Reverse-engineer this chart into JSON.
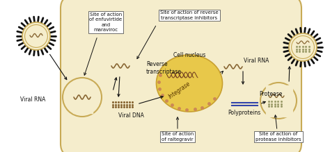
{
  "bg_color": "#ffffff",
  "cell_color": "#f5edcc",
  "cell_edge_color": "#c8aa55",
  "nucleus_color": "#e8c84a",
  "nucleus_edge": "#c8a030",
  "virus_fill": "#f5edcc",
  "virus_edge": "#c8aa55",
  "spike_color": "#111111",
  "text_color": "#111111",
  "arrow_color": "#111111",
  "box_color": "#ffffff",
  "box_edge": "#555555",
  "wavy_color": "#886633",
  "dna_color": "#886633",
  "poly_line_color": "#3344aa",
  "labels": {
    "site_enfuvirtide": "Site of action\nof enfuvirtide\nand\nmaraviroc",
    "site_rt": "Site of action of reverse\ntranscriptase inhibitors",
    "site_raltegravir": "Site of action\nof raltegravir",
    "site_protease": "Site of action of\nprotease inhibitors",
    "viral_rna_left": "Viral RNA",
    "viral_rna_right": "Viral RNA",
    "reverse_transcriptase": "Reverse\ntranscriptase",
    "viral_dna": "Viral DNA",
    "cell_nucleus": "Cell nucleus",
    "integrase": "Integrase",
    "protease": "Protease",
    "polyproteins": "Polyproteins"
  },
  "figsize": [
    4.74,
    2.19
  ],
  "dpi": 100
}
